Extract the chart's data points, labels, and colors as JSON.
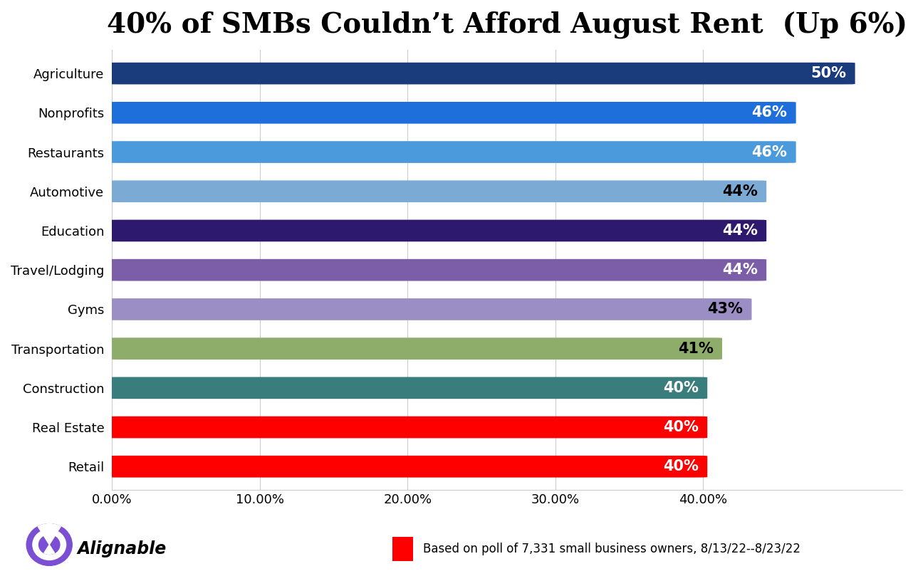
{
  "title": "40% of SMBs Couldn’t Afford August Rent  (Up 6%)",
  "categories": [
    "Retail",
    "Real Estate",
    "Construction",
    "Transportation",
    "Gyms",
    "Travel/Lodging",
    "Education",
    "Automotive",
    "Restaurants",
    "Nonprofits",
    "Agriculture"
  ],
  "values": [
    0.4,
    0.4,
    0.4,
    0.41,
    0.43,
    0.44,
    0.44,
    0.44,
    0.46,
    0.46,
    0.5
  ],
  "bar_colors": [
    "#ff0000",
    "#ff0000",
    "#3a7d7d",
    "#8fad6a",
    "#9b8ec4",
    "#7b5ea7",
    "#2d1a6e",
    "#7baad4",
    "#4a9adc",
    "#1e6fdc",
    "#1a3c7c"
  ],
  "labels": [
    "40%",
    "40%",
    "40%",
    "41%",
    "43%",
    "44%",
    "44%",
    "44%",
    "46%",
    "46%",
    "50%"
  ],
  "label_colors": [
    "white",
    "white",
    "white",
    "black",
    "black",
    "white",
    "white",
    "black",
    "white",
    "white",
    "white"
  ],
  "xlim": [
    0,
    0.535
  ],
  "xticks": [
    0.0,
    0.1,
    0.2,
    0.3,
    0.4
  ],
  "xticklabels": [
    "0.00%",
    "10.00%",
    "20.00%",
    "30.00%",
    "40.00%"
  ],
  "footer_note": "Based on poll of 7,331 small business owners, 8/13/22--8/23/22",
  "background_color": "#ffffff",
  "title_fontsize": 28,
  "label_fontsize": 15,
  "tick_fontsize": 13,
  "category_fontsize": 13
}
